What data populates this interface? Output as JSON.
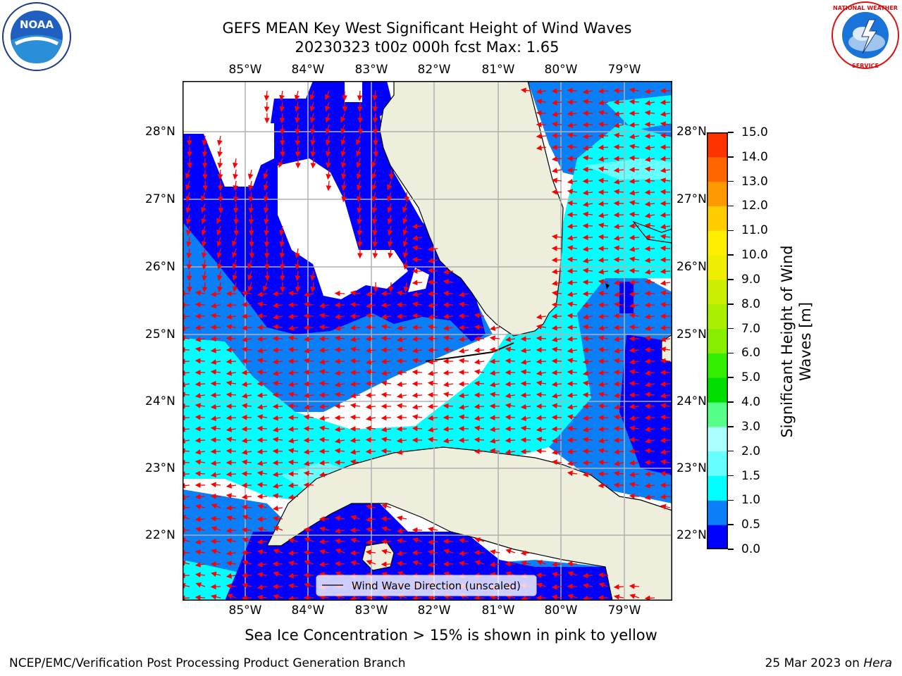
{
  "header": {
    "title_line1": "GEFS MEAN Key West Significant Height of Wind Waves",
    "title_line2": "20230323 t00z 000h fcst   Max: 1.65"
  },
  "logos": {
    "left": {
      "name": "noaa-logo",
      "text": "NOAA"
    },
    "right": {
      "name": "nws-logo",
      "text": "NATIONAL WEATHER SERVICE"
    }
  },
  "map": {
    "lon_labels": [
      "85°W",
      "84°W",
      "83°W",
      "82°W",
      "81°W",
      "80°W",
      "79°W"
    ],
    "lat_labels": [
      "28°N",
      "27°N",
      "26°N",
      "25°N",
      "24°N",
      "23°N",
      "22°N"
    ],
    "legend_label": "Wind Wave Direction (unscaled)",
    "colors": {
      "land": "#eeeedd",
      "arrow": "#ff0000",
      "grid": "#b0b0b0",
      "band_0_0_5": "#0000ff",
      "band_0_5_1_0": "#0a7ff7",
      "band_1_0_1_5": "#00ffff",
      "band_1_5_2_0": "#66ffff"
    }
  },
  "colorbar": {
    "title": "Significant Height of Wind Waves [m]",
    "tick_labels": [
      "0.0",
      "0.5",
      "1.0",
      "1.5",
      "2.0",
      "3.0",
      "4.0",
      "5.0",
      "6.0",
      "7.0",
      "8.0",
      "9.0",
      "10.0",
      "11.0",
      "12.0",
      "13.0",
      "14.0",
      "15.0"
    ],
    "colors": [
      "#0000ff",
      "#0a7ff7",
      "#00ffff",
      "#66ffff",
      "#aaffff",
      "#55ff88",
      "#00dd00",
      "#33ee00",
      "#88ee00",
      "#aaee00",
      "#ccee00",
      "#eeee00",
      "#ffee00",
      "#ffcc00",
      "#ff9900",
      "#ff6600",
      "#ff3300"
    ]
  },
  "footer": {
    "note": "Sea Ice Concentration > 15% is shown in pink to yellow",
    "left": "NCEP/EMC/Verification Post Processing Product Generation Branch",
    "date": "25 Mar 2023 on ",
    "machine": "Hera"
  }
}
